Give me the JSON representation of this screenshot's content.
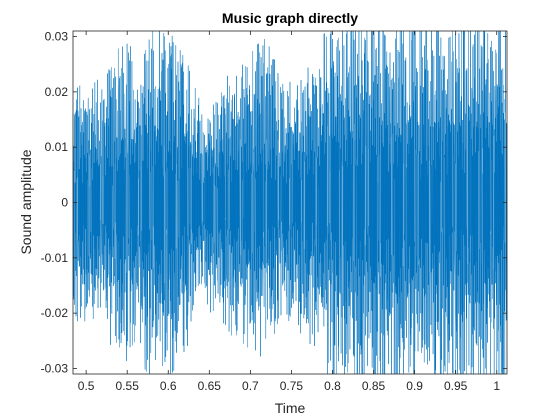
{
  "chart_data": {
    "type": "line",
    "title": "Music graph directly",
    "xlabel": "Time",
    "ylabel": "Sound amplitude",
    "xlim": [
      0.484,
      1.0125
    ],
    "ylim": [
      -0.031,
      0.031
    ],
    "x_ticks": [
      "0.5",
      "0.55",
      "0.6",
      "0.65",
      "0.7",
      "0.75",
      "0.8",
      "0.85",
      "0.9",
      "0.95",
      "1"
    ],
    "y_ticks": [
      "-0.03",
      "-0.02",
      "-0.01",
      "0",
      "0.01",
      "0.02",
      "0.03"
    ],
    "grid": false,
    "box": true,
    "series": [
      {
        "color": "#0072BD",
        "style": "dense audio waveform clipped at the axis limits",
        "envelope": [
          {
            "t": 0.484,
            "peak": 0.022
          },
          {
            "t": 0.5,
            "peak": 0.024
          },
          {
            "t": 0.52,
            "peak": 0.022
          },
          {
            "t": 0.54,
            "peak": 0.03
          },
          {
            "t": 0.56,
            "peak": 0.028
          },
          {
            "t": 0.58,
            "peak": 0.033
          },
          {
            "t": 0.6,
            "peak": 0.033
          },
          {
            "t": 0.625,
            "peak": 0.026
          },
          {
            "t": 0.64,
            "peak": 0.019
          },
          {
            "t": 0.66,
            "peak": 0.021
          },
          {
            "t": 0.68,
            "peak": 0.025
          },
          {
            "t": 0.7,
            "peak": 0.028
          },
          {
            "t": 0.72,
            "peak": 0.031
          },
          {
            "t": 0.74,
            "peak": 0.022
          },
          {
            "t": 0.76,
            "peak": 0.024
          },
          {
            "t": 0.78,
            "peak": 0.028
          },
          {
            "t": 0.8,
            "peak": 0.035
          },
          {
            "t": 0.84,
            "peak": 0.036
          },
          {
            "t": 0.88,
            "peak": 0.035
          },
          {
            "t": 0.92,
            "peak": 0.034
          },
          {
            "t": 0.96,
            "peak": 0.035
          },
          {
            "t": 1.0125,
            "peak": 0.036
          }
        ]
      }
    ]
  }
}
